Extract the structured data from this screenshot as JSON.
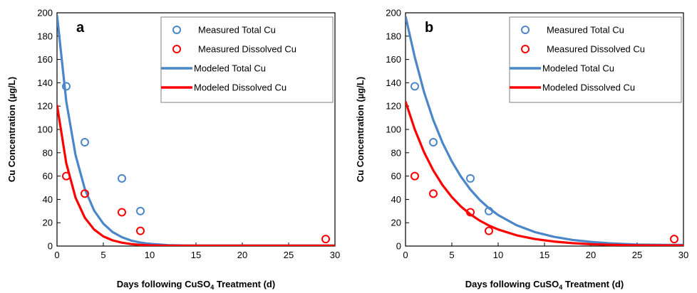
{
  "colors": {
    "total": "#4a86c8",
    "dissolved": "#ff0000",
    "plot_border": "#000000",
    "legend_border": "#808080"
  },
  "chart_data": [
    {
      "type": "scatter",
      "panel_label": "a",
      "xlabel_main": "Days following CuSO",
      "xlabel_sub": "4",
      "xlabel_tail": " Treatment (d)",
      "ylabel": "Cu Concentration (µg/L)",
      "xlim": [
        0,
        30
      ],
      "ylim": [
        0,
        200
      ],
      "x_ticks": [
        0,
        5,
        10,
        15,
        20,
        25,
        30
      ],
      "y_ticks": [
        0,
        20,
        40,
        60,
        80,
        100,
        120,
        140,
        160,
        180,
        200
      ],
      "grid": false,
      "legend_placement": "top-right",
      "series": [
        {
          "name": "Measured Total Cu",
          "kind": "markers",
          "color": "#4a86c8",
          "points": [
            [
              1,
              137
            ],
            [
              3,
              89
            ],
            [
              7,
              58
            ],
            [
              9,
              30
            ]
          ]
        },
        {
          "name": "Measured Dissolved Cu",
          "kind": "markers",
          "color": "#ff0000",
          "points": [
            [
              1,
              60
            ],
            [
              3,
              45
            ],
            [
              7,
              29
            ],
            [
              9,
              13
            ],
            [
              29,
              6
            ]
          ]
        },
        {
          "name": "Modeled Total Cu",
          "kind": "line",
          "color": "#4a86c8",
          "points": [
            [
              0,
              198
            ],
            [
              1,
              124
            ],
            [
              2,
              78
            ],
            [
              3,
              49
            ],
            [
              4,
              30.5
            ],
            [
              5,
              19.2
            ],
            [
              6,
              12
            ],
            [
              7,
              7.6
            ],
            [
              8,
              4.7
            ],
            [
              9,
              3
            ],
            [
              10,
              1.9
            ],
            [
              12,
              0.8
            ],
            [
              14,
              0.5
            ],
            [
              30,
              0.5
            ]
          ]
        },
        {
          "name": "Modeled Dissolved Cu",
          "kind": "line",
          "color": "#ff0000",
          "points": [
            [
              0,
              121
            ],
            [
              1,
              71
            ],
            [
              2,
              41.5
            ],
            [
              3,
              24.3
            ],
            [
              4,
              14.2
            ],
            [
              5,
              8.3
            ],
            [
              6,
              4.9
            ],
            [
              7,
              2.9
            ],
            [
              8,
              1.7
            ],
            [
              9,
              1
            ],
            [
              10,
              0.6
            ],
            [
              12,
              0.3
            ],
            [
              30,
              0.3
            ]
          ]
        }
      ]
    },
    {
      "type": "scatter",
      "panel_label": "b",
      "xlabel_main": "Days following CuSO",
      "xlabel_sub": "4",
      "xlabel_tail": " Treatment (d)",
      "ylabel": "Cu Concentration (µg/L)",
      "xlim": [
        0,
        30
      ],
      "ylim": [
        0,
        200
      ],
      "x_ticks": [
        0,
        5,
        10,
        15,
        20,
        25,
        30
      ],
      "y_ticks": [
        0,
        20,
        40,
        60,
        80,
        100,
        120,
        140,
        160,
        180,
        200
      ],
      "grid": false,
      "legend_placement": "top-right",
      "series": [
        {
          "name": "Measured Total Cu",
          "kind": "markers",
          "color": "#4a86c8",
          "points": [
            [
              1,
              137
            ],
            [
              3,
              89
            ],
            [
              7,
              58
            ],
            [
              9,
              30
            ]
          ]
        },
        {
          "name": "Measured Dissolved Cu",
          "kind": "markers",
          "color": "#ff0000",
          "points": [
            [
              1,
              60
            ],
            [
              3,
              45
            ],
            [
              7,
              29
            ],
            [
              9,
              13
            ],
            [
              29,
              6
            ]
          ]
        },
        {
          "name": "Modeled Total Cu",
          "kind": "line",
          "color": "#4a86c8",
          "points": [
            [
              0,
              197
            ],
            [
              1,
              162
            ],
            [
              2,
              132
            ],
            [
              3,
              108
            ],
            [
              4,
              88.5
            ],
            [
              5,
              72.5
            ],
            [
              6,
              59.3
            ],
            [
              7,
              48.5
            ],
            [
              8,
              39.7
            ],
            [
              9,
              32.5
            ],
            [
              10,
              26.6
            ],
            [
              12,
              17.8
            ],
            [
              14,
              11.9
            ],
            [
              16,
              8
            ],
            [
              18,
              5.3
            ],
            [
              20,
              3.6
            ],
            [
              22,
              2.4
            ],
            [
              25,
              1.3
            ],
            [
              28,
              1
            ],
            [
              30,
              1
            ]
          ]
        },
        {
          "name": "Modeled Dissolved Cu",
          "kind": "line",
          "color": "#ff0000",
          "points": [
            [
              0,
              124
            ],
            [
              1,
              100
            ],
            [
              2,
              80.5
            ],
            [
              3,
              64.8
            ],
            [
              4,
              52.2
            ],
            [
              5,
              42
            ],
            [
              6,
              33.8
            ],
            [
              7,
              27.2
            ],
            [
              8,
              21.9
            ],
            [
              9,
              17.6
            ],
            [
              10,
              14.2
            ],
            [
              12,
              9.2
            ],
            [
              14,
              6
            ],
            [
              16,
              3.9
            ],
            [
              18,
              2.5
            ],
            [
              20,
              1.6
            ],
            [
              22,
              1.1
            ],
            [
              25,
              0.6
            ],
            [
              30,
              0.5
            ]
          ]
        }
      ]
    }
  ]
}
